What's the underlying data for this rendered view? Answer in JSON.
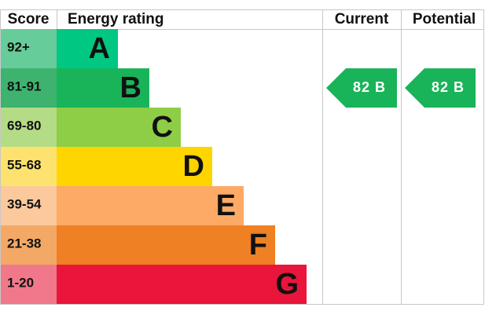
{
  "header": {
    "score": "Score",
    "rating": "Energy rating",
    "current": "Current",
    "potential": "Potential"
  },
  "bands": [
    {
      "score": "92+",
      "letter": "A"
    },
    {
      "score": "81-91",
      "letter": "B"
    },
    {
      "score": "69-80",
      "letter": "C"
    },
    {
      "score": "55-68",
      "letter": "D"
    },
    {
      "score": "39-54",
      "letter": "E"
    },
    {
      "score": "21-38",
      "letter": "F"
    },
    {
      "score": "1-20",
      "letter": "G"
    }
  ],
  "current": "82 B",
  "potential": "82 B"
}
